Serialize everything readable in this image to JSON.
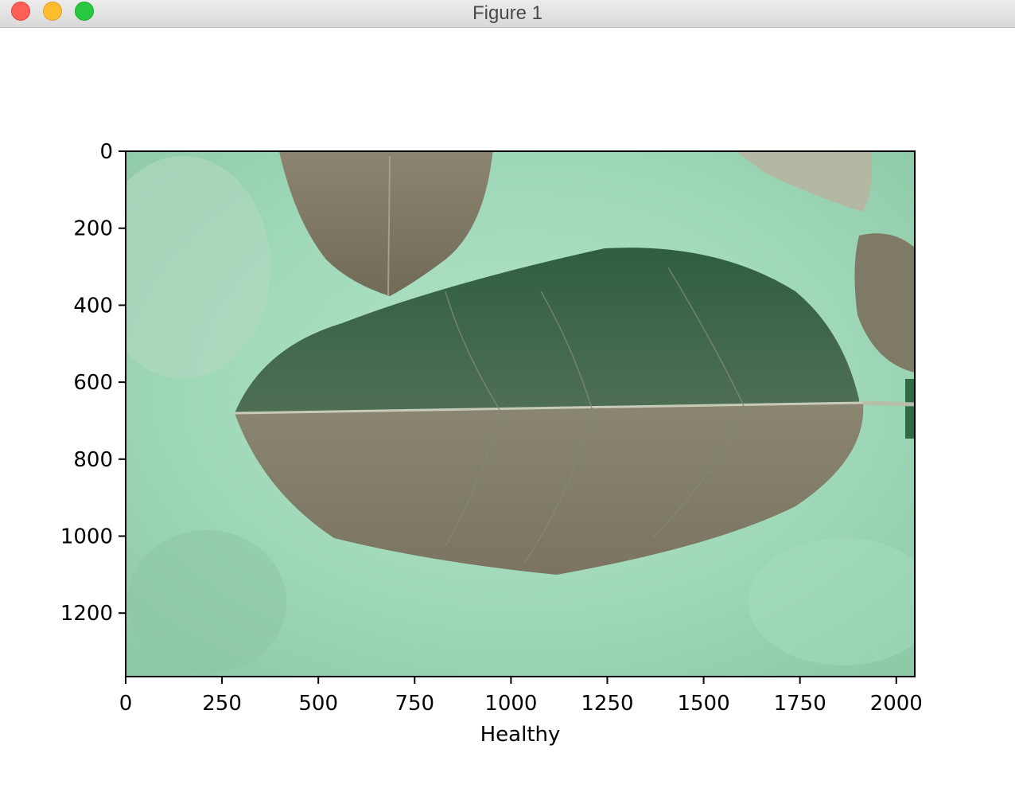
{
  "window": {
    "title": "Figure 1",
    "buttons": [
      "close",
      "minimize",
      "zoom"
    ]
  },
  "chart_data": {
    "type": "image",
    "xlabel": "Healthy",
    "xlim": [
      0,
      2048
    ],
    "ylim": [
      1365,
      0
    ],
    "xticks": [
      "0",
      "250",
      "500",
      "750",
      "1000",
      "1250",
      "1500",
      "1750",
      "2000"
    ],
    "yticks": [
      "0",
      "200",
      "400",
      "600",
      "800",
      "1000",
      "1200"
    ],
    "xtick_values": [
      0,
      250,
      500,
      750,
      1000,
      1250,
      1500,
      1750,
      2000
    ],
    "ytick_values": [
      0,
      200,
      400,
      600,
      800,
      1000,
      1200
    ],
    "image_subject": "leaf-photo",
    "colors": {
      "background": "#a8dcbf",
      "leaf_dark": "#3e6a4c",
      "leaf_light": "#8f8a74"
    }
  }
}
